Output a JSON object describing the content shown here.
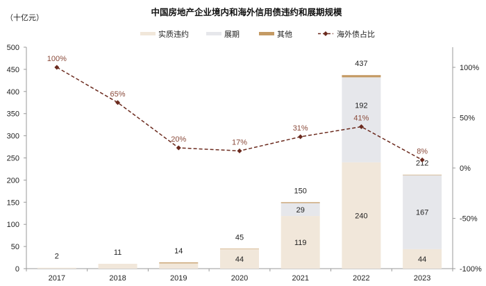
{
  "chart_data": {
    "type": "bar",
    "title": "中国房地产企业境内和海外信用债违约和展期规模",
    "ylabel": "（十亿元）",
    "categories": [
      "2017",
      "2018",
      "2019",
      "2020",
      "2021",
      "2022",
      "2023"
    ],
    "series": [
      {
        "name": "实质违约",
        "color": "#f1e7da",
        "values": [
          2,
          11,
          12,
          44,
          119,
          240,
          44
        ]
      },
      {
        "name": "展期",
        "color": "#e6e7eb",
        "values": [
          0,
          0,
          0,
          0,
          29,
          192,
          167
        ]
      },
      {
        "name": "其他",
        "color": "#c49a64",
        "values": [
          0,
          0,
          2,
          1,
          2,
          5,
          1
        ]
      }
    ],
    "totals": [
      "2",
      "11",
      "14",
      "45",
      "150",
      "437",
      "212"
    ],
    "inner_labels": {
      "实质违约": [
        "",
        "",
        "",
        "44",
        "119",
        "240",
        "44"
      ],
      "展期": [
        "",
        "",
        "",
        "",
        "29",
        "192",
        "167"
      ]
    },
    "line": {
      "name": "海外债占比",
      "color": "#6b2a1e",
      "values": [
        100,
        65,
        20,
        17,
        31,
        41,
        8
      ],
      "labels": [
        "100%",
        "65%",
        "20%",
        "17%",
        "31%",
        "41%",
        "8%"
      ]
    },
    "ylim": [
      0,
      500
    ],
    "yticks": [
      "0",
      "50",
      "100",
      "150",
      "200",
      "250",
      "300",
      "350",
      "400",
      "450",
      "500"
    ],
    "y2lim": [
      -100,
      120
    ],
    "y2ticks": [
      {
        "v": -100,
        "label": "-100%"
      },
      {
        "v": -50,
        "label": "-50%"
      },
      {
        "v": 0,
        "label": "0%"
      },
      {
        "v": 50,
        "label": "50%"
      },
      {
        "v": 100,
        "label": "100%"
      }
    ],
    "legend": "top-center"
  }
}
